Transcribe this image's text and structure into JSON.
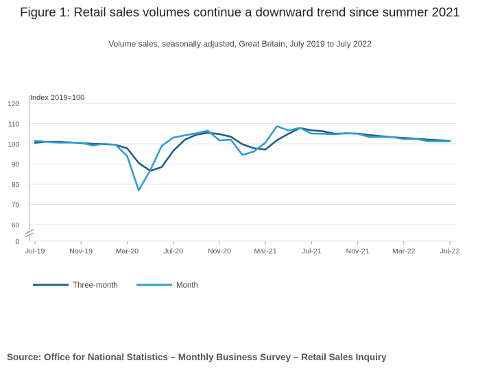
{
  "header": {
    "title": "Figure 1: Retail sales volumes continue a downward trend since summer 2021",
    "subtitle": "Volume sales, seasonally adjusted, Great Britain, July 2019 to July 2022"
  },
  "footer": {
    "source": "Source: Office for National Statistics – Monthly Business Survey – Retail Sales Inquiry"
  },
  "chart_data": {
    "type": "line",
    "title": "Figure 1: Retail sales volumes continue a downward trend since summer 2021",
    "subtitle": "Volume sales, seasonally adjusted, Great Britain, July 2019 to July 2022",
    "ylabel": "Index 2019=100",
    "xlabel": "",
    "ylim": [
      0,
      120
    ],
    "y_axis_break": [
      0,
      60
    ],
    "yticks": [
      0,
      60,
      70,
      80,
      90,
      100,
      110,
      120
    ],
    "grid": true,
    "legend_position": "bottom-left",
    "x": [
      "Jul-19",
      "Aug-19",
      "Sep-19",
      "Oct-19",
      "Nov-19",
      "Dec-19",
      "Jan-20",
      "Feb-20",
      "Mar-20",
      "Apr-20",
      "May-20",
      "Jun-20",
      "Jul-20",
      "Aug-20",
      "Sep-20",
      "Oct-20",
      "Nov-20",
      "Dec-20",
      "Jan-21",
      "Feb-21",
      "Mar-21",
      "Apr-21",
      "May-21",
      "Jun-21",
      "Jul-21",
      "Aug-21",
      "Sep-21",
      "Oct-21",
      "Nov-21",
      "Dec-21",
      "Jan-22",
      "Feb-22",
      "Mar-22",
      "Apr-22",
      "May-22",
      "Jun-22",
      "Jul-22"
    ],
    "xtick_labels": [
      "Jul-19",
      "Nov-19",
      "Mar-20",
      "Jul-20",
      "Nov-20",
      "Mar-21",
      "Jul-21",
      "Nov-21",
      "Mar-22",
      "Jul-22"
    ],
    "series": [
      {
        "name": "Three-month",
        "color": "#1f5f8b",
        "values": [
          100.5,
          101.0,
          101.0,
          100.7,
          100.4,
          100.0,
          99.8,
          99.5,
          97.8,
          90.5,
          86.6,
          88.5,
          96.5,
          102.0,
          104.5,
          105.5,
          104.8,
          103.5,
          99.8,
          97.8,
          97.2,
          101.8,
          105.0,
          107.8,
          106.7,
          106.2,
          105.0,
          105.2,
          105.1,
          104.4,
          103.8,
          103.3,
          102.9,
          102.6,
          102.1,
          101.8,
          101.5
        ]
      },
      {
        "name": "Month",
        "color": "#2ca0cd",
        "values": [
          101.5,
          100.9,
          100.6,
          100.6,
          100.5,
          99.2,
          100.0,
          99.5,
          94.0,
          77.0,
          86.9,
          99.0,
          103.1,
          104.2,
          105.2,
          106.5,
          101.7,
          102.0,
          94.5,
          96.2,
          100.6,
          108.7,
          106.6,
          107.9,
          105.1,
          105.0,
          104.7,
          105.3,
          105.0,
          103.4,
          103.5,
          103.3,
          102.4,
          102.5,
          101.4,
          101.3,
          101.3
        ]
      }
    ]
  }
}
